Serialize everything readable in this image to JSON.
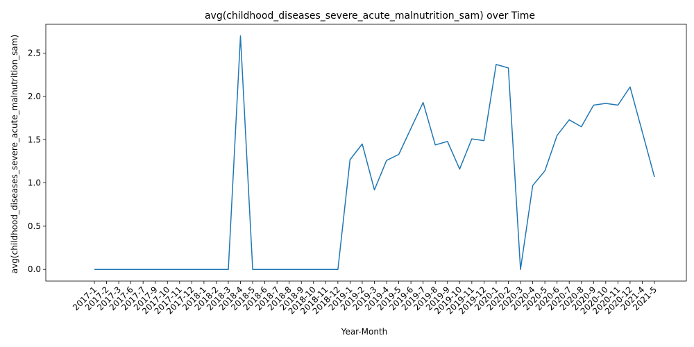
{
  "chart_data": {
    "type": "line",
    "title": "avg(childhood_diseases_severe_acute_malnutrition_sam) over Time",
    "xlabel": "Year-Month",
    "ylabel": "avg(childhood_diseases_severe_acute_malnutrition_sam)",
    "ylim": [
      -0.135,
      2.835
    ],
    "yticks": [
      0.0,
      0.5,
      1.0,
      1.5,
      2.0,
      2.5
    ],
    "ytick_labels": [
      "0.0",
      "0.5",
      "1.0",
      "1.5",
      "2.0",
      "2.5"
    ],
    "grid": false,
    "line_color": "#1f77b4",
    "categories": [
      "2017-1",
      "2017-2",
      "2017-3",
      "2017-6",
      "2017-7",
      "2017-9",
      "2017-10",
      "2017-11",
      "2017-12",
      "2018-1",
      "2018-2",
      "2018-3",
      "2018-4",
      "2018-5",
      "2018-6",
      "2018-7",
      "2018-8",
      "2018-9",
      "2018-10",
      "2018-11",
      "2018-12",
      "2019-1",
      "2019-2",
      "2019-3",
      "2019-4",
      "2019-5",
      "2019-6",
      "2019-7",
      "2019-8",
      "2019-9",
      "2019-10",
      "2019-11",
      "2019-12",
      "2020-1",
      "2020-2",
      "2020-3",
      "2020-4",
      "2020-5",
      "2020-6",
      "2020-7",
      "2020-8",
      "2020-9",
      "2020-10",
      "2020-11",
      "2020-12",
      "2021-4",
      "2021-5"
    ],
    "values": [
      0,
      0,
      0,
      0,
      0,
      0,
      0,
      0,
      0,
      0,
      0,
      0,
      2.7,
      0,
      0,
      0,
      0,
      0,
      0,
      0,
      0,
      1.27,
      1.45,
      0.92,
      1.26,
      1.33,
      1.63,
      1.93,
      1.44,
      1.48,
      1.16,
      1.51,
      1.49,
      2.37,
      2.33,
      0,
      0.97,
      1.14,
      1.55,
      1.73,
      1.65,
      1.9,
      1.92,
      1.9,
      2.11,
      1.59,
      1.07
    ]
  }
}
